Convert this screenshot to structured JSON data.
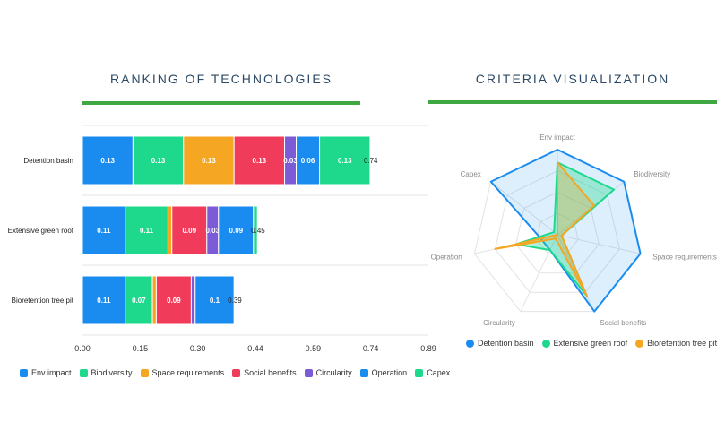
{
  "left_title": "RANKING OF TECHNOLOGIES",
  "right_title": "CRITERIA VISUALIZATION",
  "colors": {
    "accent_line": "#3fa843",
    "title": "#2c4a66"
  },
  "chart_data": [
    {
      "type": "bar",
      "orientation": "horizontal",
      "stacked": true,
      "title": "RANKING OF TECHNOLOGIES",
      "categories": [
        "Detention basin",
        "Extensive green roof",
        "Bioretention tree pit"
      ],
      "xlim": [
        0,
        0.89
      ],
      "x_ticks": [
        "0.00",
        "0.15",
        "0.30",
        "0.44",
        "0.59",
        "0.74",
        "0.89"
      ],
      "totals": [
        0.74,
        0.45,
        0.39
      ],
      "grid": true,
      "legend_position": "bottom",
      "series": [
        {
          "name": "Env impact",
          "color": "#1a8cf0",
          "values": [
            0.13,
            0.11,
            0.11
          ],
          "labels": [
            "0.13",
            "0.11",
            "0.11"
          ]
        },
        {
          "name": "Biodiversity",
          "color": "#1ed98c",
          "values": [
            0.13,
            0.11,
            0.07
          ],
          "labels": [
            "0.13",
            "0.11",
            "0.07"
          ]
        },
        {
          "name": "Space requirements",
          "color": "#f5a623",
          "values": [
            0.13,
            0.01,
            0.01
          ],
          "labels": [
            "0.13",
            "",
            ""
          ]
        },
        {
          "name": "Social benefits",
          "color": "#f03c5a",
          "values": [
            0.13,
            0.09,
            0.09
          ],
          "labels": [
            "0.13",
            "0.09",
            "0.09"
          ]
        },
        {
          "name": "Circularity",
          "color": "#7b5cd6",
          "values": [
            0.03,
            0.03,
            0.01
          ],
          "labels": [
            "0.03",
            "0.03",
            ""
          ]
        },
        {
          "name": "Operation",
          "color": "#1a8cf0",
          "values": [
            0.06,
            0.09,
            0.1
          ],
          "labels": [
            "0.06",
            "0.09",
            "0.1"
          ]
        },
        {
          "name": "Capex",
          "color": "#1ed98c",
          "values": [
            0.13,
            0.01,
            0.0
          ],
          "labels": [
            "0.13",
            "",
            ""
          ]
        }
      ]
    },
    {
      "type": "radar",
      "title": "CRITERIA VISUALIZATION",
      "axes": [
        "Env impact",
        "Biodiversity",
        "Space requirements",
        "Social benefits",
        "Circularity",
        "Operation",
        "Capex"
      ],
      "rmax": 1.0,
      "levels": 4,
      "legend_position": "bottom",
      "series": [
        {
          "name": "Detention basin",
          "color": "#1a8cf0",
          "values": [
            1.0,
            1.0,
            1.0,
            1.0,
            0.2,
            0.2,
            1.0
          ]
        },
        {
          "name": "Extensive green roof",
          "color": "#1ed98c",
          "values": [
            0.85,
            0.85,
            0.05,
            0.8,
            0.2,
            0.5,
            0.05
          ]
        },
        {
          "name": "Bioretention tree pit",
          "color": "#f5a623",
          "values": [
            0.85,
            0.55,
            0.05,
            0.8,
            0.05,
            0.75,
            0.0
          ]
        }
      ]
    }
  ]
}
